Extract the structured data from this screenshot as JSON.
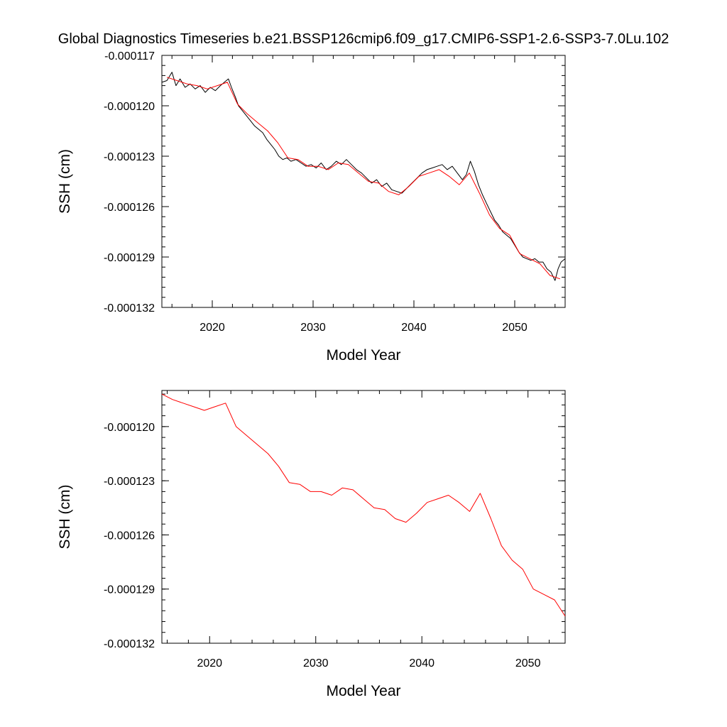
{
  "title": "Global Diagnostics Timeseries b.e21.BSSP126cmip6.f09_g17.CMIP6-SSP1-2.6-SSP3-7.0Lu.102",
  "chart_data": [
    {
      "type": "line",
      "title": "",
      "xlabel": "Model Year",
      "ylabel": "SSH (cm)",
      "xlim": [
        2015,
        2055
      ],
      "ylim": [
        -0.000132,
        -0.000117
      ],
      "xticks": [
        2020,
        2030,
        2040,
        2050
      ],
      "xtick_labels": [
        "2020",
        "2030",
        "2040",
        "2050"
      ],
      "yticks": [
        -0.000117,
        -0.00012,
        -0.000123,
        -0.000126,
        -0.000129,
        -0.000132
      ],
      "ytick_labels": [
        "-0.000117",
        "-0.000120",
        "-0.000123",
        "-0.000126",
        "-0.000129",
        "-0.000132"
      ],
      "grid": false,
      "series": [
        {
          "color": "#000000",
          "x": [
            2015.0,
            2015.5,
            2016.0,
            2016.4,
            2016.8,
            2017.3,
            2017.8,
            2018.3,
            2018.8,
            2019.3,
            2019.8,
            2020.3,
            2020.8,
            2021.2,
            2021.6,
            2021.9,
            2022.3,
            2022.6,
            2023.0,
            2023.4,
            2023.8,
            2024.2,
            2024.6,
            2025.0,
            2025.4,
            2025.8,
            2026.2,
            2026.6,
            2027.0,
            2027.4,
            2027.8,
            2028.3,
            2028.8,
            2029.3,
            2029.8,
            2030.3,
            2030.8,
            2031.3,
            2031.8,
            2032.3,
            2032.8,
            2033.3,
            2033.8,
            2034.3,
            2034.8,
            2035.3,
            2035.8,
            2036.3,
            2036.8,
            2037.3,
            2037.8,
            2038.3,
            2038.8,
            2039.3,
            2039.8,
            2040.3,
            2040.8,
            2041.3,
            2041.8,
            2042.3,
            2042.8,
            2043.3,
            2043.8,
            2044.3,
            2044.8,
            2045.2,
            2045.6,
            2046.0,
            2046.4,
            2046.8,
            2047.2,
            2047.6,
            2048.0,
            2048.4,
            2048.8,
            2049.2,
            2049.6,
            2050.0,
            2050.4,
            2050.8,
            2051.2,
            2051.6,
            2052.0,
            2052.4,
            2052.8,
            2053.2,
            2053.6,
            2054.0,
            2054.3,
            2054.6,
            2055.0
          ],
          "y": [
            -0.0001186,
            -0.0001185,
            -0.000118,
            -0.0001188,
            -0.0001184,
            -0.0001189,
            -0.0001187,
            -0.000119,
            -0.0001188,
            -0.0001192,
            -0.0001189,
            -0.0001191,
            -0.0001188,
            -0.0001186,
            -0.0001184,
            -0.0001189,
            -0.0001195,
            -0.00012,
            -0.0001203,
            -0.0001206,
            -0.0001209,
            -0.0001212,
            -0.0001214,
            -0.0001216,
            -0.000122,
            -0.0001223,
            -0.0001226,
            -0.000123,
            -0.0001232,
            -0.0001231,
            -0.0001233,
            -0.0001232,
            -0.0001234,
            -0.0001236,
            -0.0001235,
            -0.0001237,
            -0.0001234,
            -0.0001238,
            -0.0001236,
            -0.0001233,
            -0.0001235,
            -0.0001232,
            -0.0001235,
            -0.0001238,
            -0.000124,
            -0.0001243,
            -0.0001246,
            -0.0001244,
            -0.0001248,
            -0.0001246,
            -0.000125,
            -0.0001251,
            -0.0001252,
            -0.0001249,
            -0.0001246,
            -0.0001243,
            -0.000124,
            -0.0001238,
            -0.0001237,
            -0.0001236,
            -0.0001235,
            -0.0001238,
            -0.0001236,
            -0.000124,
            -0.0001244,
            -0.0001241,
            -0.0001233,
            -0.0001239,
            -0.0001247,
            -0.0001253,
            -0.0001258,
            -0.0001263,
            -0.0001268,
            -0.0001271,
            -0.0001275,
            -0.0001277,
            -0.0001279,
            -0.0001283,
            -0.0001287,
            -0.000129,
            -0.0001291,
            -0.0001292,
            -0.0001291,
            -0.0001293,
            -0.0001293,
            -0.0001297,
            -0.0001299,
            -0.0001304,
            -0.0001297,
            -0.0001293,
            -0.0001291
          ]
        },
        {
          "color": "#ff0000",
          "x": [
            2015.5,
            2016.5,
            2017.5,
            2018.5,
            2019.5,
            2020.5,
            2021.5,
            2022.5,
            2023.5,
            2024.5,
            2025.5,
            2026.5,
            2027.5,
            2028.5,
            2029.5,
            2030.5,
            2031.5,
            2032.5,
            2033.5,
            2034.5,
            2035.5,
            2036.5,
            2037.5,
            2038.5,
            2039.5,
            2040.5,
            2041.5,
            2042.5,
            2043.5,
            2044.5,
            2045.5,
            2046.5,
            2047.5,
            2048.5,
            2049.5,
            2050.5,
            2051.5,
            2052.5,
            2053.5,
            2054.5
          ],
          "y": [
            -0.0001183,
            -0.0001185,
            -0.0001187,
            -0.0001188,
            -0.000119,
            -0.0001188,
            -0.0001186,
            -0.0001199,
            -0.0001205,
            -0.000121,
            -0.0001215,
            -0.0001222,
            -0.0001231,
            -0.0001232,
            -0.0001236,
            -0.0001236,
            -0.0001238,
            -0.0001234,
            -0.0001235,
            -0.000124,
            -0.0001245,
            -0.0001246,
            -0.0001251,
            -0.0001253,
            -0.0001248,
            -0.0001242,
            -0.000124,
            -0.0001238,
            -0.0001242,
            -0.0001247,
            -0.000124,
            -0.0001252,
            -0.0001265,
            -0.0001273,
            -0.0001277,
            -0.0001288,
            -0.0001291,
            -0.0001294,
            -0.0001301,
            -0.0001303
          ]
        }
      ]
    },
    {
      "type": "line",
      "title": "",
      "xlabel": "Model Year",
      "ylabel": "SSH (cm)",
      "xlim": [
        2015.5,
        2053.5
      ],
      "ylim": [
        -0.000132,
        -0.000118
      ],
      "xticks": [
        2020,
        2030,
        2040,
        2050
      ],
      "xtick_labels": [
        "2020",
        "2030",
        "2040",
        "2050"
      ],
      "yticks": [
        -0.00012,
        -0.000123,
        -0.000126,
        -0.000129,
        -0.000132
      ],
      "ytick_labels": [
        "-0.000120",
        "-0.000123",
        "-0.000126",
        "-0.000129",
        "-0.000132"
      ],
      "grid": false,
      "series": [
        {
          "color": "#ff0000",
          "x": [
            2015.5,
            2016.5,
            2017.5,
            2018.5,
            2019.5,
            2020.5,
            2021.5,
            2022.5,
            2023.5,
            2024.5,
            2025.5,
            2026.5,
            2027.5,
            2028.5,
            2029.5,
            2030.5,
            2031.5,
            2032.5,
            2033.5,
            2034.5,
            2035.5,
            2036.5,
            2037.5,
            2038.5,
            2039.5,
            2040.5,
            2041.5,
            2042.5,
            2043.5,
            2044.5,
            2045.5,
            2046.5,
            2047.5,
            2048.5,
            2049.5,
            2050.5,
            2051.5,
            2052.5,
            2053.5
          ],
          "y": [
            -0.0001182,
            -0.0001185,
            -0.0001187,
            -0.0001189,
            -0.0001191,
            -0.0001189,
            -0.0001187,
            -0.00012,
            -0.0001205,
            -0.000121,
            -0.0001215,
            -0.0001222,
            -0.0001231,
            -0.0001232,
            -0.0001236,
            -0.0001236,
            -0.0001238,
            -0.0001234,
            -0.0001235,
            -0.000124,
            -0.0001245,
            -0.0001246,
            -0.0001251,
            -0.0001253,
            -0.0001248,
            -0.0001242,
            -0.000124,
            -0.0001238,
            -0.0001242,
            -0.0001247,
            -0.0001237,
            -0.0001251,
            -0.0001266,
            -0.0001274,
            -0.0001279,
            -0.000129,
            -0.0001293,
            -0.0001296,
            -0.0001305
          ]
        }
      ]
    }
  ]
}
